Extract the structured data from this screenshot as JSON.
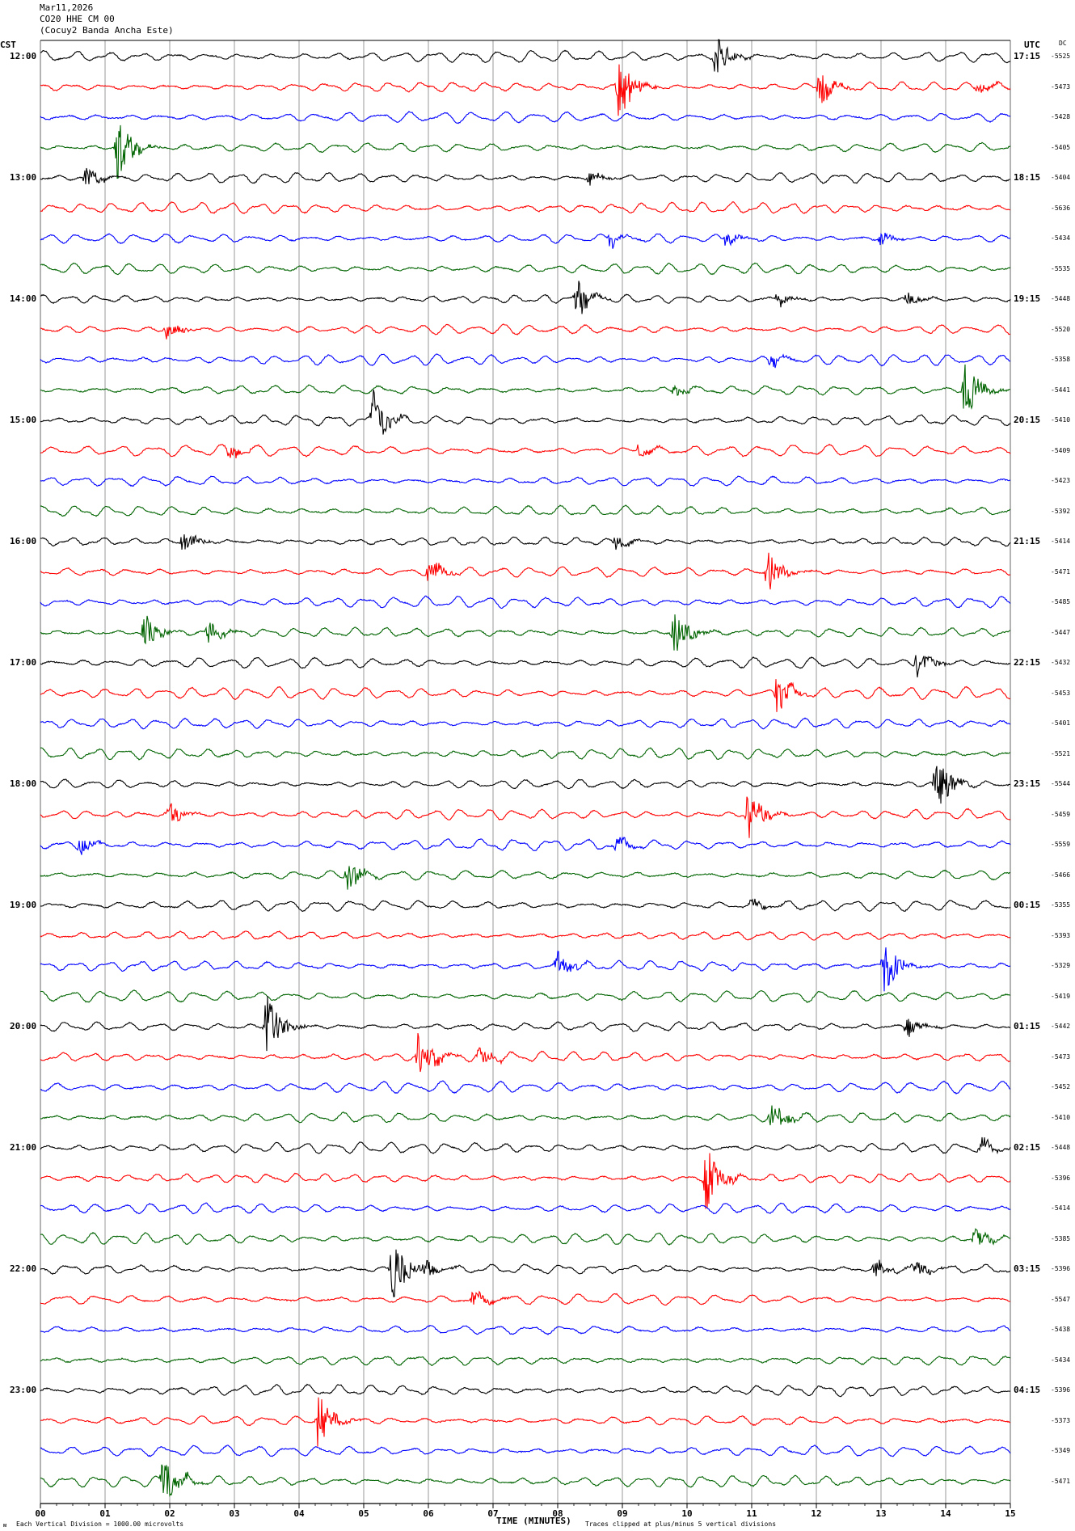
{
  "header": {
    "date": "Mar11,2026",
    "station": "CO20 HHE CM 00",
    "location": "(Cocuy2 Banda Ancha Este)"
  },
  "labels": {
    "left_tz": "CST",
    "right_tz": "UTC",
    "dc_header": "DC",
    "footer_left": "Each Vertical Division = 1000.00 microvolts",
    "footer_right": "Traces clipped at plus/minus 5 vertical divisions",
    "corner_mark": "ᴍ"
  },
  "colors": {
    "trace_cycle": [
      "#000000",
      "#ff0000",
      "#0000ff",
      "#006400"
    ],
    "grid": "#808080",
    "axis": "#000000"
  },
  "chart_data": {
    "type": "line",
    "title": "",
    "xlabel": "TIME (MINUTES)",
    "ylabel": "",
    "xlim": [
      0,
      15
    ],
    "x_ticks": [
      "00",
      "01",
      "02",
      "03",
      "04",
      "05",
      "06",
      "07",
      "08",
      "09",
      "10",
      "11",
      "12",
      "13",
      "14",
      "15"
    ],
    "minutes_per_line": 15,
    "grid": true,
    "left_hour_labels": [
      "12:00",
      "13:00",
      "14:00",
      "15:00",
      "16:00",
      "17:00",
      "18:00",
      "19:00",
      "20:00",
      "21:00",
      "22:00",
      "23:00"
    ],
    "right_hour_labels": [
      "17:15",
      "18:15",
      "19:15",
      "20:15",
      "21:15",
      "22:15",
      "23:15",
      "00:15",
      "01:15",
      "02:15",
      "03:15",
      "04:15"
    ],
    "dc_offsets": [
      "-5525",
      "-5473",
      "-5428",
      "-5405",
      "-5404",
      "-5636",
      "-5434",
      "-5535",
      "-5448",
      "-5520",
      "-5358",
      "-5441",
      "-5410",
      "-5409",
      "-5423",
      "-5392",
      "-5414",
      "-5471",
      "-5485",
      "-5447",
      "-5432",
      "-5453",
      "-5401",
      "-5521",
      "-5544",
      "-5459",
      "-5559",
      "-5466",
      "-5355",
      "-5393",
      "-5329",
      "-5419",
      "-5442",
      "-5473",
      "-5452",
      "-5410",
      "-5448",
      "-5396",
      "-5414",
      "-5385",
      "-5396",
      "-5547",
      "-5438",
      "-5434",
      "-5396",
      "-5373",
      "-5349",
      "-5471"
    ],
    "events": [
      {
        "line": 0,
        "minute": 10.45,
        "amp": 1.0
      },
      {
        "line": 1,
        "minute": 8.95,
        "amp": 1.6
      },
      {
        "line": 1,
        "minute": 12.05,
        "amp": 0.9
      },
      {
        "line": 1,
        "minute": 14.5,
        "amp": 0.35
      },
      {
        "line": 3,
        "minute": 1.2,
        "amp": 1.6
      },
      {
        "line": 4,
        "minute": 0.7,
        "amp": 0.5
      },
      {
        "line": 4,
        "minute": 8.5,
        "amp": 0.3
      },
      {
        "line": 6,
        "minute": 8.8,
        "amp": 0.3
      },
      {
        "line": 6,
        "minute": 10.6,
        "amp": 0.35
      },
      {
        "line": 6,
        "minute": 13.0,
        "amp": 0.3
      },
      {
        "line": 8,
        "minute": 8.3,
        "amp": 0.9
      },
      {
        "line": 8,
        "minute": 11.4,
        "amp": 0.35
      },
      {
        "line": 8,
        "minute": 13.4,
        "amp": 0.3
      },
      {
        "line": 9,
        "minute": 1.95,
        "amp": 0.45
      },
      {
        "line": 10,
        "minute": 11.3,
        "amp": 0.35
      },
      {
        "line": 11,
        "minute": 9.8,
        "amp": 0.3
      },
      {
        "line": 11,
        "minute": 14.3,
        "amp": 1.4
      },
      {
        "line": 12,
        "minute": 5.15,
        "amp": 1.3
      },
      {
        "line": 13,
        "minute": 2.9,
        "amp": 0.4
      },
      {
        "line": 13,
        "minute": 9.25,
        "amp": 0.35
      },
      {
        "line": 16,
        "minute": 2.2,
        "amp": 0.5
      },
      {
        "line": 16,
        "minute": 8.9,
        "amp": 0.4
      },
      {
        "line": 17,
        "minute": 6.0,
        "amp": 0.7
      },
      {
        "line": 17,
        "minute": 11.25,
        "amp": 1.0
      },
      {
        "line": 19,
        "minute": 1.6,
        "amp": 1.0
      },
      {
        "line": 19,
        "minute": 2.6,
        "amp": 0.6
      },
      {
        "line": 19,
        "minute": 9.8,
        "amp": 1.2
      },
      {
        "line": 20,
        "minute": 13.55,
        "amp": 0.7
      },
      {
        "line": 21,
        "minute": 11.4,
        "amp": 1.1
      },
      {
        "line": 24,
        "minute": 13.85,
        "amp": 1.6
      },
      {
        "line": 25,
        "minute": 2.0,
        "amp": 0.5
      },
      {
        "line": 25,
        "minute": 10.95,
        "amp": 1.4
      },
      {
        "line": 26,
        "minute": 0.6,
        "amp": 0.45
      },
      {
        "line": 26,
        "minute": 8.9,
        "amp": 0.35
      },
      {
        "line": 27,
        "minute": 4.75,
        "amp": 0.8
      },
      {
        "line": 28,
        "minute": 11.0,
        "amp": 0.3
      },
      {
        "line": 30,
        "minute": 8.0,
        "amp": 0.7
      },
      {
        "line": 30,
        "minute": 13.05,
        "amp": 1.3
      },
      {
        "line": 32,
        "minute": 3.5,
        "amp": 1.6
      },
      {
        "line": 32,
        "minute": 13.4,
        "amp": 0.5
      },
      {
        "line": 33,
        "minute": 5.85,
        "amp": 1.3
      },
      {
        "line": 33,
        "minute": 6.8,
        "amp": 0.5
      },
      {
        "line": 35,
        "minute": 11.3,
        "amp": 0.8
      },
      {
        "line": 36,
        "minute": 14.55,
        "amp": 0.4
      },
      {
        "line": 37,
        "minute": 10.3,
        "amp": 1.6
      },
      {
        "line": 39,
        "minute": 14.45,
        "amp": 0.5
      },
      {
        "line": 40,
        "minute": 5.45,
        "amp": 1.6
      },
      {
        "line": 40,
        "minute": 5.95,
        "amp": 0.5
      },
      {
        "line": 40,
        "minute": 12.9,
        "amp": 0.5
      },
      {
        "line": 40,
        "minute": 13.5,
        "amp": 0.5
      },
      {
        "line": 41,
        "minute": 6.7,
        "amp": 0.4
      },
      {
        "line": 45,
        "minute": 4.3,
        "amp": 1.3
      },
      {
        "line": 47,
        "minute": 1.9,
        "amp": 1.3
      }
    ]
  }
}
